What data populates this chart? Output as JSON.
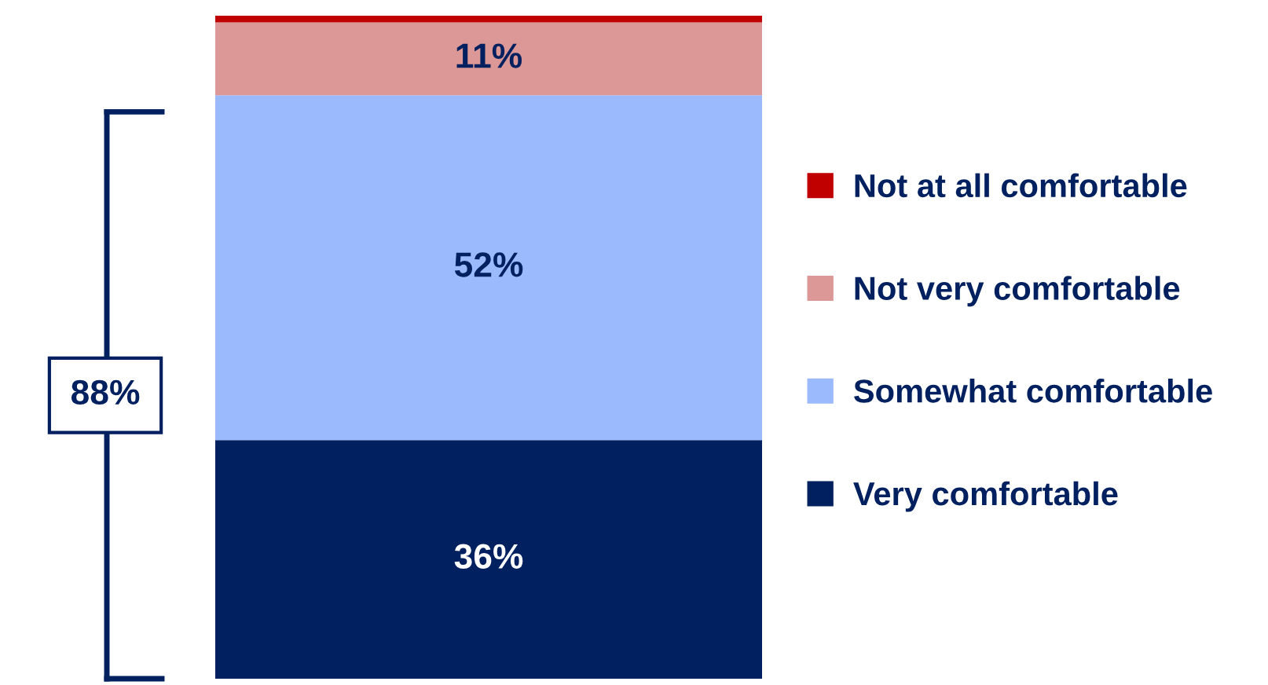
{
  "chart_data": {
    "type": "bar",
    "stacked": true,
    "categories": [
      null
    ],
    "series": [
      {
        "name": "Very comfortable",
        "color": "#00205f",
        "values": [
          36
        ],
        "value_labels": [
          "36%"
        ]
      },
      {
        "name": "Somewhat comfortable",
        "color": "#9bb9fd",
        "values": [
          52
        ],
        "value_labels": [
          "52%"
        ]
      },
      {
        "name": "Not very comfortable",
        "color": "#dc9896",
        "values": [
          11
        ],
        "value_labels": [
          "11%"
        ]
      },
      {
        "name": "Not at all comfortable",
        "color": "#c00000",
        "values": [
          1
        ],
        "value_labels": [
          null
        ]
      }
    ],
    "annotations": [
      "88%"
    ],
    "legend": "right"
  }
}
